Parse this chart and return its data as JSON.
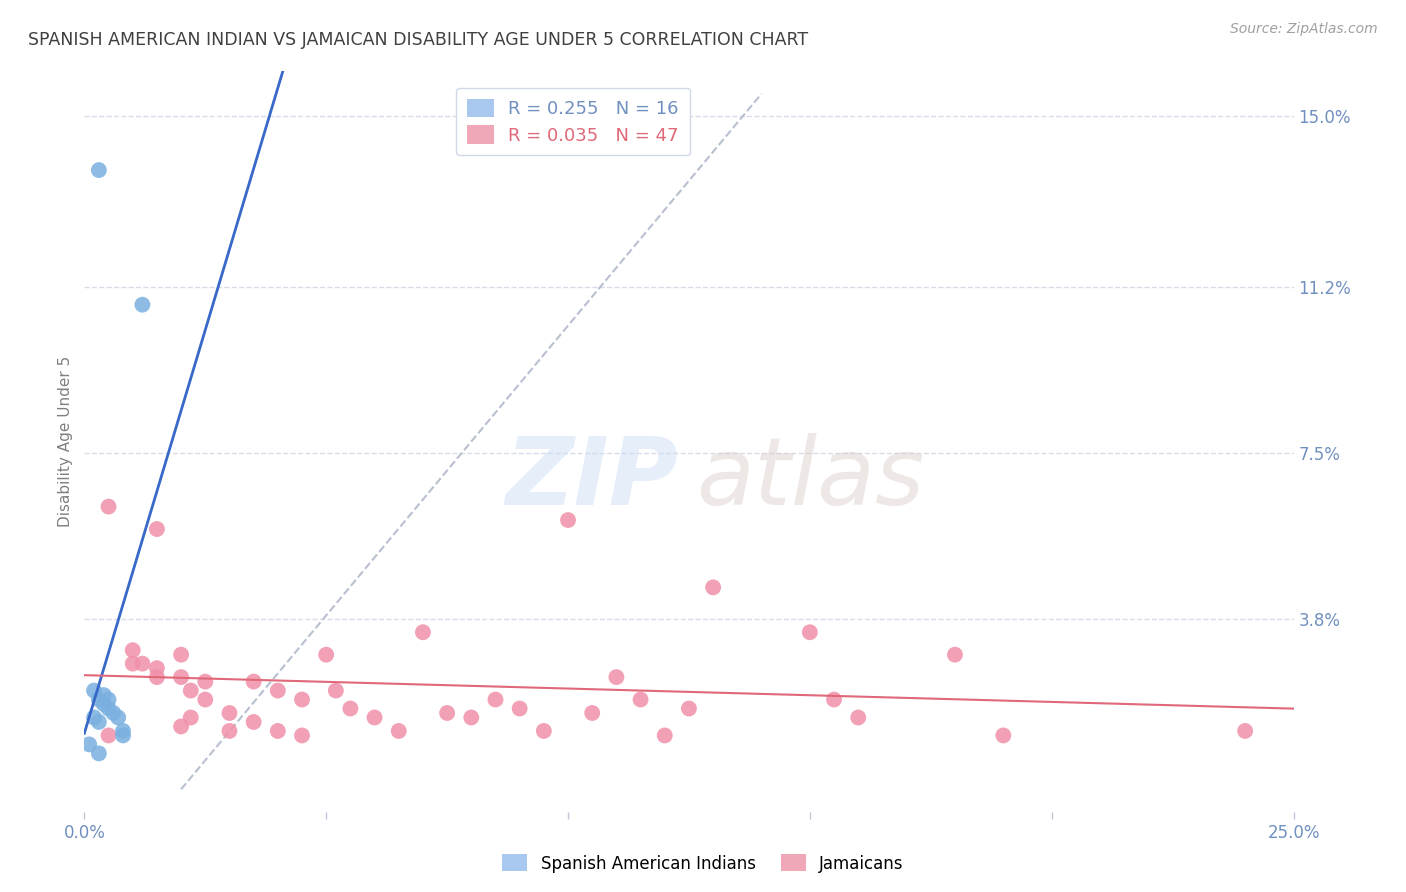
{
  "title": "SPANISH AMERICAN INDIAN VS JAMAICAN DISABILITY AGE UNDER 5 CORRELATION CHART",
  "source": "Source: ZipAtlas.com",
  "xlabel": "",
  "ylabel": "Disability Age Under 5",
  "xlim": [
    0.0,
    0.25
  ],
  "ylim": [
    -0.005,
    0.16
  ],
  "yticks": [
    0.038,
    0.075,
    0.112,
    0.15
  ],
  "ytick_labels": [
    "3.8%",
    "7.5%",
    "11.2%",
    "15.0%"
  ],
  "xticks": [
    0.0,
    0.05,
    0.1,
    0.15,
    0.2,
    0.25
  ],
  "xtick_labels": [
    "0.0%",
    "",
    "",
    "",
    "",
    "25.0%"
  ],
  "legend_label1": "Spanish American Indians",
  "legend_label2": "Jamaicans",
  "color_indian": "#a8c8f0",
  "color_jamaican": "#f0a8b8",
  "color_indian_fill": "#7ab0e0",
  "color_jamaican_fill": "#f090a8",
  "indian_points": [
    [
      0.003,
      0.138
    ],
    [
      0.012,
      0.108
    ],
    [
      0.002,
      0.022
    ],
    [
      0.003,
      0.02
    ],
    [
      0.004,
      0.021
    ],
    [
      0.004,
      0.019
    ],
    [
      0.005,
      0.02
    ],
    [
      0.005,
      0.018
    ],
    [
      0.006,
      0.017
    ],
    [
      0.007,
      0.016
    ],
    [
      0.002,
      0.016
    ],
    [
      0.003,
      0.015
    ],
    [
      0.008,
      0.013
    ],
    [
      0.008,
      0.012
    ],
    [
      0.001,
      0.01
    ],
    [
      0.003,
      0.008
    ]
  ],
  "jamaican_points": [
    [
      0.005,
      0.063
    ],
    [
      0.015,
      0.058
    ],
    [
      0.01,
      0.031
    ],
    [
      0.01,
      0.028
    ],
    [
      0.012,
      0.028
    ],
    [
      0.015,
      0.027
    ],
    [
      0.015,
      0.025
    ],
    [
      0.02,
      0.03
    ],
    [
      0.02,
      0.025
    ],
    [
      0.022,
      0.022
    ],
    [
      0.022,
      0.016
    ],
    [
      0.02,
      0.014
    ],
    [
      0.025,
      0.024
    ],
    [
      0.025,
      0.02
    ],
    [
      0.03,
      0.017
    ],
    [
      0.03,
      0.013
    ],
    [
      0.035,
      0.024
    ],
    [
      0.035,
      0.015
    ],
    [
      0.04,
      0.022
    ],
    [
      0.04,
      0.013
    ],
    [
      0.045,
      0.02
    ],
    [
      0.045,
      0.012
    ],
    [
      0.05,
      0.03
    ],
    [
      0.052,
      0.022
    ],
    [
      0.055,
      0.018
    ],
    [
      0.06,
      0.016
    ],
    [
      0.065,
      0.013
    ],
    [
      0.07,
      0.035
    ],
    [
      0.075,
      0.017
    ],
    [
      0.08,
      0.016
    ],
    [
      0.085,
      0.02
    ],
    [
      0.09,
      0.018
    ],
    [
      0.095,
      0.013
    ],
    [
      0.1,
      0.06
    ],
    [
      0.105,
      0.017
    ],
    [
      0.11,
      0.025
    ],
    [
      0.115,
      0.02
    ],
    [
      0.12,
      0.012
    ],
    [
      0.125,
      0.018
    ],
    [
      0.13,
      0.045
    ],
    [
      0.15,
      0.035
    ],
    [
      0.155,
      0.02
    ],
    [
      0.16,
      0.016
    ],
    [
      0.18,
      0.03
    ],
    [
      0.19,
      0.012
    ],
    [
      0.24,
      0.013
    ],
    [
      0.005,
      0.012
    ]
  ],
  "indian_line_color": "#3868c8",
  "jamaican_line_color": "#e06878",
  "dashed_line_color": "#b8c0d0",
  "bg_color": "#ffffff",
  "grid_color": "#d8dce8",
  "title_color": "#404040",
  "axis_label_color": "#808080",
  "tick_color": "#7090c0",
  "right_tick_color": "#7090c0",
  "indian_R": "0.255",
  "indian_N": "16",
  "jamaican_R": "0.035",
  "jamaican_N": "47"
}
